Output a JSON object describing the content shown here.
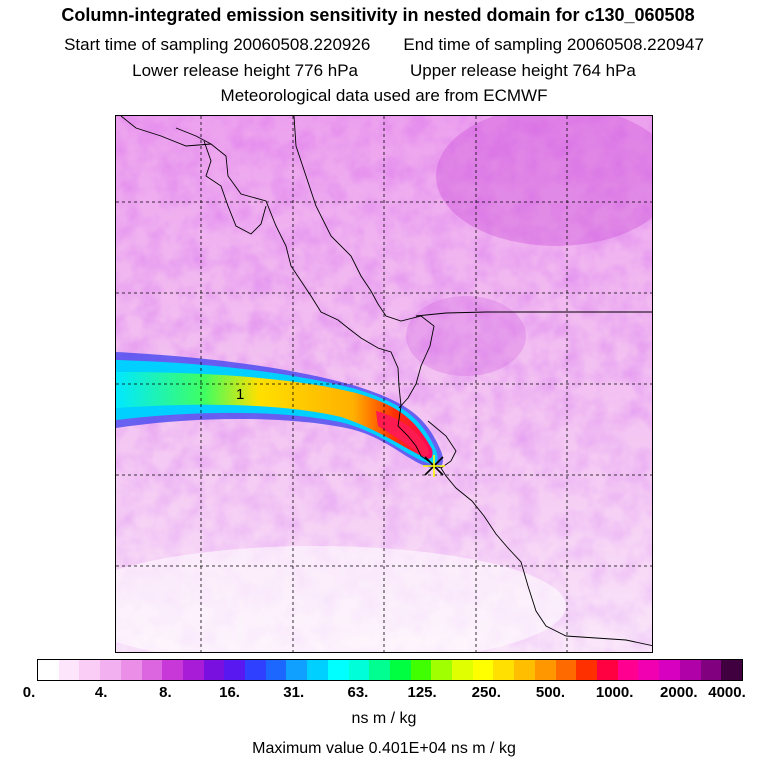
{
  "header": {
    "title": "Column-integrated emission sensitivity in nested domain for c130_060508",
    "start_label": "Start time of sampling 20060508.220926",
    "end_label": "End time of sampling 20060508.220947",
    "lower_label": "Lower release height  776 hPa",
    "upper_label": "Upper release height  764 hPa",
    "met_label": "Meteorological data used are from ECMWF"
  },
  "map": {
    "plume_label": "1",
    "release_marker": "release-point-x"
  },
  "colorbar": {
    "colors": [
      "#ffffff",
      "#fde6fb",
      "#f9cdf6",
      "#f3b0f0",
      "#ea8ee8",
      "#dc66e0",
      "#c838d8",
      "#a81cd8",
      "#7a10e0",
      "#5a18f0",
      "#3040ff",
      "#1c68ff",
      "#10a0ff",
      "#00d0ff",
      "#00ffff",
      "#00ffd8",
      "#00ff90",
      "#00ff40",
      "#40ff00",
      "#a0ff00",
      "#e0ff00",
      "#ffff00",
      "#ffe000",
      "#ffbf00",
      "#ff9800",
      "#ff6a00",
      "#ff3000",
      "#ff0040",
      "#ff0090",
      "#f000b0",
      "#d800c0",
      "#b000a8",
      "#800080",
      "#400040"
    ],
    "tick_labels": [
      "0.",
      "4.",
      "8.",
      "16.",
      "31.",
      "63.",
      "125.",
      "250.",
      "500.",
      "1000.",
      "2000.",
      "4000."
    ],
    "units": "ns m / kg",
    "max_value": "Maximum value  0.401E+04 ns m / kg"
  }
}
